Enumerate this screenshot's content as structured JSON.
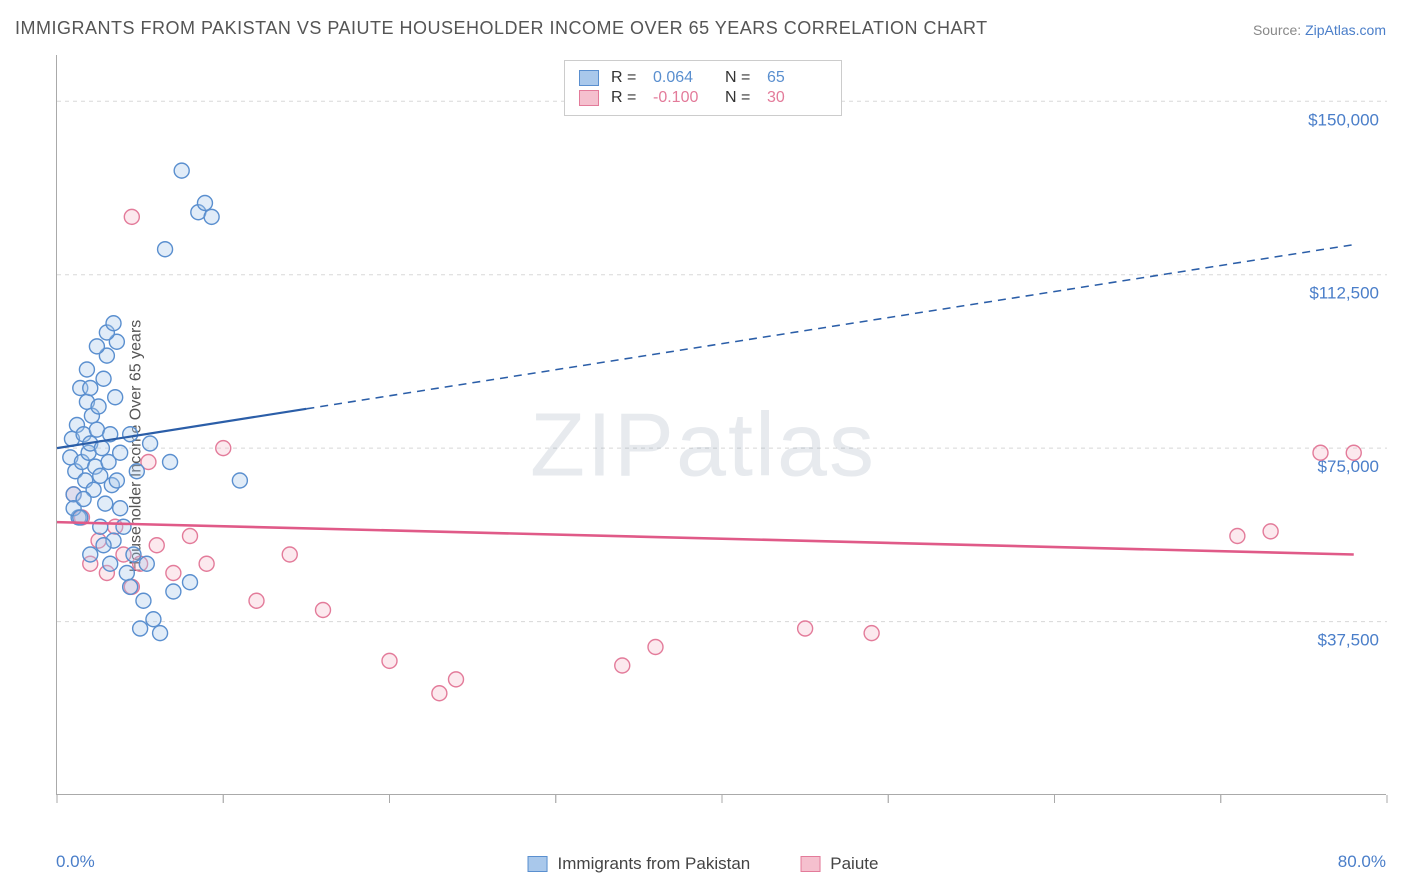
{
  "title": "IMMIGRANTS FROM PAKISTAN VS PAIUTE HOUSEHOLDER INCOME OVER 65 YEARS CORRELATION CHART",
  "source_label": "Source: ",
  "source_link": "ZipAtlas.com",
  "ylabel": "Householder Income Over 65 years",
  "watermark": "ZIPatlas",
  "chart": {
    "type": "scatter",
    "plot_bg": "#ffffff",
    "grid_color": "#d8d8d8",
    "axis_color": "#aaaaaa",
    "xlim": [
      0,
      80
    ],
    "ylim": [
      0,
      160000
    ],
    "x_start_label": "0.0%",
    "x_end_label": "80.0%",
    "x_ticks": [
      0,
      10,
      20,
      30,
      40,
      50,
      60,
      70,
      80
    ],
    "y_gridlines": [
      {
        "v": 37500,
        "label": "$37,500"
      },
      {
        "v": 75000,
        "label": "$75,000"
      },
      {
        "v": 112500,
        "label": "$112,500"
      },
      {
        "v": 150000,
        "label": "$150,000"
      }
    ],
    "x_label_color": "#4a7ec9",
    "y_label_color": "#4a7ec9",
    "tick_label_fontsize": 17,
    "marker_radius": 7.5,
    "marker_stroke_width": 1.4,
    "marker_fill_opacity": 0.35
  },
  "series": [
    {
      "name": "Immigrants from Pakistan",
      "color_fill": "#a9c8eb",
      "color_stroke": "#5a8fcf",
      "r_value": "0.064",
      "n_value": "65",
      "trend": {
        "solid_from": [
          0,
          75000
        ],
        "solid_to": [
          15,
          83500
        ],
        "dash_from": [
          15,
          83500
        ],
        "dash_to": [
          78,
          119000
        ],
        "width": 2.2,
        "color": "#2b5ea8",
        "dash": "8,6"
      },
      "points": [
        [
          0.8,
          73000
        ],
        [
          0.9,
          77000
        ],
        [
          1.0,
          65000
        ],
        [
          1.1,
          70000
        ],
        [
          1.2,
          80000
        ],
        [
          1.3,
          60000
        ],
        [
          1.4,
          88000
        ],
        [
          1.5,
          72000
        ],
        [
          1.6,
          78000
        ],
        [
          1.7,
          68000
        ],
        [
          1.8,
          85000
        ],
        [
          1.9,
          74000
        ],
        [
          2.0,
          76000
        ],
        [
          2.1,
          82000
        ],
        [
          2.2,
          66000
        ],
        [
          2.3,
          71000
        ],
        [
          2.4,
          79000
        ],
        [
          2.5,
          84000
        ],
        [
          2.6,
          69000
        ],
        [
          2.7,
          75000
        ],
        [
          2.8,
          90000
        ],
        [
          2.9,
          63000
        ],
        [
          3.0,
          95000
        ],
        [
          3.1,
          72000
        ],
        [
          3.2,
          78000
        ],
        [
          3.3,
          67000
        ],
        [
          3.4,
          55000
        ],
        [
          3.5,
          86000
        ],
        [
          3.6,
          98000
        ],
        [
          3.8,
          62000
        ],
        [
          4.0,
          58000
        ],
        [
          4.2,
          48000
        ],
        [
          4.4,
          45000
        ],
        [
          4.6,
          52000
        ],
        [
          4.8,
          70000
        ],
        [
          5.0,
          36000
        ],
        [
          5.2,
          42000
        ],
        [
          5.4,
          50000
        ],
        [
          5.8,
          38000
        ],
        [
          6.2,
          35000
        ],
        [
          6.5,
          118000
        ],
        [
          7.0,
          44000
        ],
        [
          7.5,
          135000
        ],
        [
          8.0,
          46000
        ],
        [
          8.5,
          126000
        ],
        [
          8.9,
          128000
        ],
        [
          9.3,
          125000
        ],
        [
          2.4,
          97000
        ],
        [
          3.0,
          100000
        ],
        [
          3.4,
          102000
        ],
        [
          1.8,
          92000
        ],
        [
          2.0,
          88000
        ],
        [
          1.0,
          62000
        ],
        [
          1.4,
          60000
        ],
        [
          1.6,
          64000
        ],
        [
          2.6,
          58000
        ],
        [
          3.8,
          74000
        ],
        [
          4.4,
          78000
        ],
        [
          5.6,
          76000
        ],
        [
          6.8,
          72000
        ],
        [
          2.0,
          52000
        ],
        [
          2.8,
          54000
        ],
        [
          11.0,
          68000
        ],
        [
          3.6,
          68000
        ],
        [
          3.2,
          50000
        ]
      ]
    },
    {
      "name": "Paiute",
      "color_fill": "#f5c0ce",
      "color_stroke": "#e37b9a",
      "r_value": "-0.100",
      "n_value": "30",
      "trend": {
        "solid_from": [
          0,
          59000
        ],
        "solid_to": [
          78,
          52000
        ],
        "width": 2.6,
        "color": "#e05a88"
      },
      "points": [
        [
          1.0,
          65000
        ],
        [
          1.5,
          60000
        ],
        [
          2.0,
          50000
        ],
        [
          2.5,
          55000
        ],
        [
          3.0,
          48000
        ],
        [
          3.5,
          58000
        ],
        [
          4.0,
          52000
        ],
        [
          4.5,
          45000
        ],
        [
          5.0,
          50000
        ],
        [
          5.5,
          72000
        ],
        [
          6.0,
          54000
        ],
        [
          7.0,
          48000
        ],
        [
          8.0,
          56000
        ],
        [
          9.0,
          50000
        ],
        [
          10.0,
          75000
        ],
        [
          12.0,
          42000
        ],
        [
          14.0,
          52000
        ],
        [
          16.0,
          40000
        ],
        [
          20.0,
          29000
        ],
        [
          23.0,
          22000
        ],
        [
          24.0,
          25000
        ],
        [
          34.0,
          28000
        ],
        [
          36.0,
          32000
        ],
        [
          45.0,
          36000
        ],
        [
          49.0,
          35000
        ],
        [
          71.0,
          56000
        ],
        [
          73.0,
          57000
        ],
        [
          76.0,
          74000
        ],
        [
          78.0,
          74000
        ],
        [
          4.5,
          125000
        ]
      ]
    }
  ],
  "legend_bottom": {
    "series1_label": "Immigrants from Pakistan",
    "series2_label": "Paiute"
  },
  "legend_top": {
    "r_label": "R  =",
    "n_label": "N  ="
  }
}
